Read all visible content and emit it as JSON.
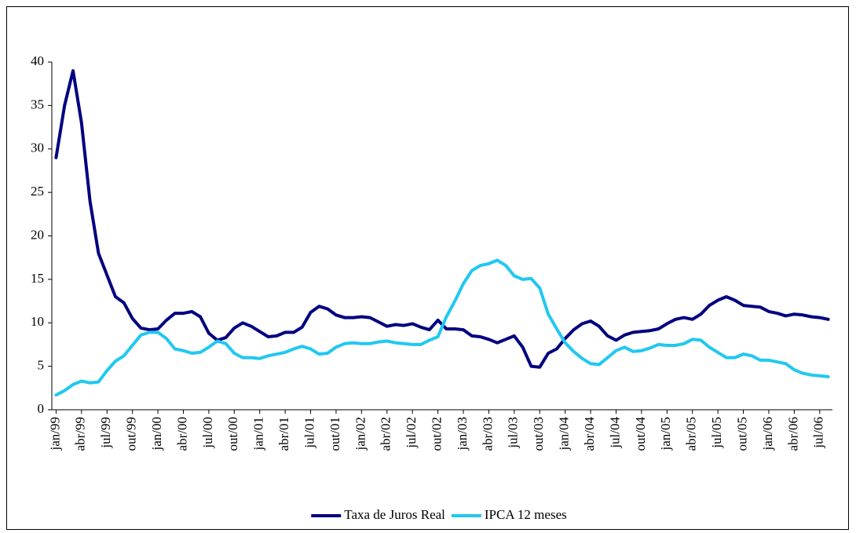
{
  "chart_data": {
    "type": "line",
    "categories": [
      "jan/99",
      null,
      null,
      "abr/99",
      null,
      null,
      "jul/99",
      null,
      null,
      "out/99",
      null,
      null,
      "jan/00",
      null,
      null,
      "abr/00",
      null,
      null,
      "jul/00",
      null,
      null,
      "out/00",
      null,
      null,
      "jan/01",
      null,
      null,
      "abr/01",
      null,
      null,
      "jul/01",
      null,
      null,
      "out/01",
      null,
      null,
      "jan/02",
      null,
      null,
      "abr/02",
      null,
      null,
      "jul/02",
      null,
      null,
      "out/02",
      null,
      null,
      "jan/03",
      null,
      null,
      "abr/03",
      null,
      null,
      "jul/03",
      null,
      null,
      "out/03",
      null,
      null,
      "jan/04",
      null,
      null,
      "abr/04",
      null,
      null,
      "jul/04",
      null,
      null,
      "out/04",
      null,
      null,
      "jan/05",
      null,
      null,
      "abr/05",
      null,
      null,
      "jul/05",
      null,
      null,
      "out/05",
      null,
      null,
      "jan/06",
      null,
      null,
      "abr/06",
      null,
      null,
      "jul/06",
      null
    ],
    "series": [
      {
        "name": "Taxa de Juros Real",
        "color": "#000080",
        "values": [
          29,
          35,
          39,
          33,
          24,
          18,
          15.5,
          13,
          12.3,
          10.5,
          9.4,
          9.2,
          9.3,
          10.3,
          11.1,
          11.1,
          11.3,
          10.7,
          8.8,
          8,
          8.3,
          9.4,
          10,
          9.6,
          9,
          8.4,
          8.5,
          8.9,
          8.9,
          9.5,
          11.2,
          11.9,
          11.6,
          10.9,
          10.6,
          10.6,
          10.7,
          10.6,
          10.1,
          9.6,
          9.8,
          9.7,
          9.9,
          9.5,
          9.2,
          10.3,
          9.3,
          9.3,
          9.2,
          8.5,
          8.4,
          8.1,
          7.7,
          8.1,
          8.5,
          7.2,
          5,
          4.9,
          6.5,
          7,
          8.2,
          9.2,
          9.9,
          10.2,
          9.6,
          8.5,
          8,
          8.6,
          8.9,
          9,
          9.1,
          9.3,
          9.9,
          10.4,
          10.6,
          10.4,
          11,
          12,
          12.6,
          13,
          12.6,
          12,
          11.9,
          11.8,
          11.3,
          11.1,
          10.8,
          11,
          10.9,
          10.7,
          10.6,
          10.4
        ]
      },
      {
        "name": "IPCA 12 meses",
        "color": "#21c8f0",
        "values": [
          1.7,
          2.2,
          2.9,
          3.3,
          3.1,
          3.2,
          4.5,
          5.6,
          6.2,
          7.4,
          8.6,
          8.9,
          8.9,
          8.2,
          7,
          6.8,
          6.5,
          6.6,
          7.2,
          7.9,
          7.6,
          6.5,
          6,
          6,
          5.9,
          6.2,
          6.4,
          6.6,
          7,
          7.3,
          7,
          6.4,
          6.5,
          7.2,
          7.6,
          7.7,
          7.6,
          7.6,
          7.8,
          7.9,
          7.7,
          7.6,
          7.5,
          7.5,
          8,
          8.4,
          10.7,
          12.5,
          14.5,
          16,
          16.6,
          16.8,
          17.2,
          16.6,
          15.4,
          15,
          15.1,
          14,
          11,
          9.3,
          7.7,
          6.7,
          5.9,
          5.3,
          5.2,
          6,
          6.8,
          7.2,
          6.7,
          6.8,
          7.1,
          7.5,
          7.4,
          7.4,
          7.6,
          8.1,
          8,
          7.2,
          6.6,
          6,
          6,
          6.4,
          6.2,
          5.7,
          5.7,
          5.5,
          5.3,
          4.6,
          4.2,
          4,
          3.9,
          3.8
        ]
      }
    ],
    "ylim": [
      0,
      40
    ],
    "yticks": [
      0,
      5,
      10,
      15,
      20,
      25,
      30,
      35,
      40
    ],
    "legend": "bottom"
  }
}
